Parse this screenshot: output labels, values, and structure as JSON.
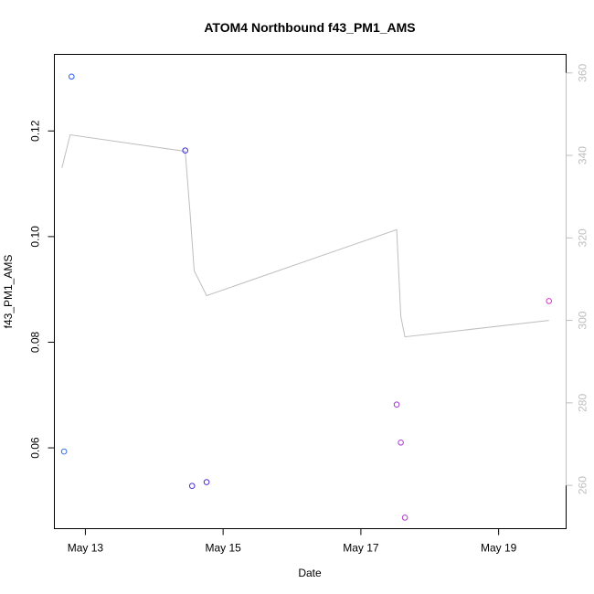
{
  "chart_data": {
    "type": "scatter",
    "title": "ATOM4 Northbound f43_PM1_AMS",
    "xlabel": "Date",
    "ylabel": "f43_PM1_AMS",
    "x_tick_labels": [
      "May 13",
      "May 15",
      "May 17",
      "May 19"
    ],
    "x_tick_values": [
      13,
      15,
      17,
      19
    ],
    "xlim": [
      12.55,
      19.98
    ],
    "ylim": [
      0.0447,
      0.1345
    ],
    "y_ticks": [
      0.06,
      0.08,
      0.1,
      0.12
    ],
    "y_tick_labels": [
      "0.06",
      "0.08",
      "0.10",
      "0.12"
    ],
    "y2lim": [
      249.5,
      364.5
    ],
    "y2_ticks": [
      260,
      280,
      300,
      320,
      340,
      360
    ],
    "y2_tick_labels": [
      "260",
      "280",
      "300",
      "320",
      "340",
      "360"
    ],
    "y2_color": "#bebebe",
    "grid": false,
    "points": [
      {
        "x": 12.69,
        "y": 0.0593,
        "color": "#3a6fe6"
      },
      {
        "x": 12.8,
        "y": 0.1303,
        "color": "#2f5ee6"
      },
      {
        "x": 14.45,
        "y": 0.1163,
        "color": "#3a2fd6"
      },
      {
        "x": 14.55,
        "y": 0.0528,
        "color": "#4a2ccf"
      },
      {
        "x": 14.76,
        "y": 0.0535,
        "color": "#4f2acb"
      },
      {
        "x": 17.52,
        "y": 0.0682,
        "color": "#a033d6"
      },
      {
        "x": 17.58,
        "y": 0.061,
        "color": "#a83ad9"
      },
      {
        "x": 17.64,
        "y": 0.0468,
        "color": "#b035d6"
      },
      {
        "x": 19.73,
        "y": 0.0878,
        "color": "#d633c4"
      }
    ],
    "line_series": {
      "axis": "right",
      "color": "#bebebe",
      "x": [
        12.66,
        12.78,
        14.45,
        14.52,
        14.58,
        14.76,
        17.52,
        17.58,
        17.64,
        19.73
      ],
      "y": [
        337,
        345,
        341,
        326,
        312,
        306,
        322,
        301,
        296,
        300
      ]
    }
  }
}
